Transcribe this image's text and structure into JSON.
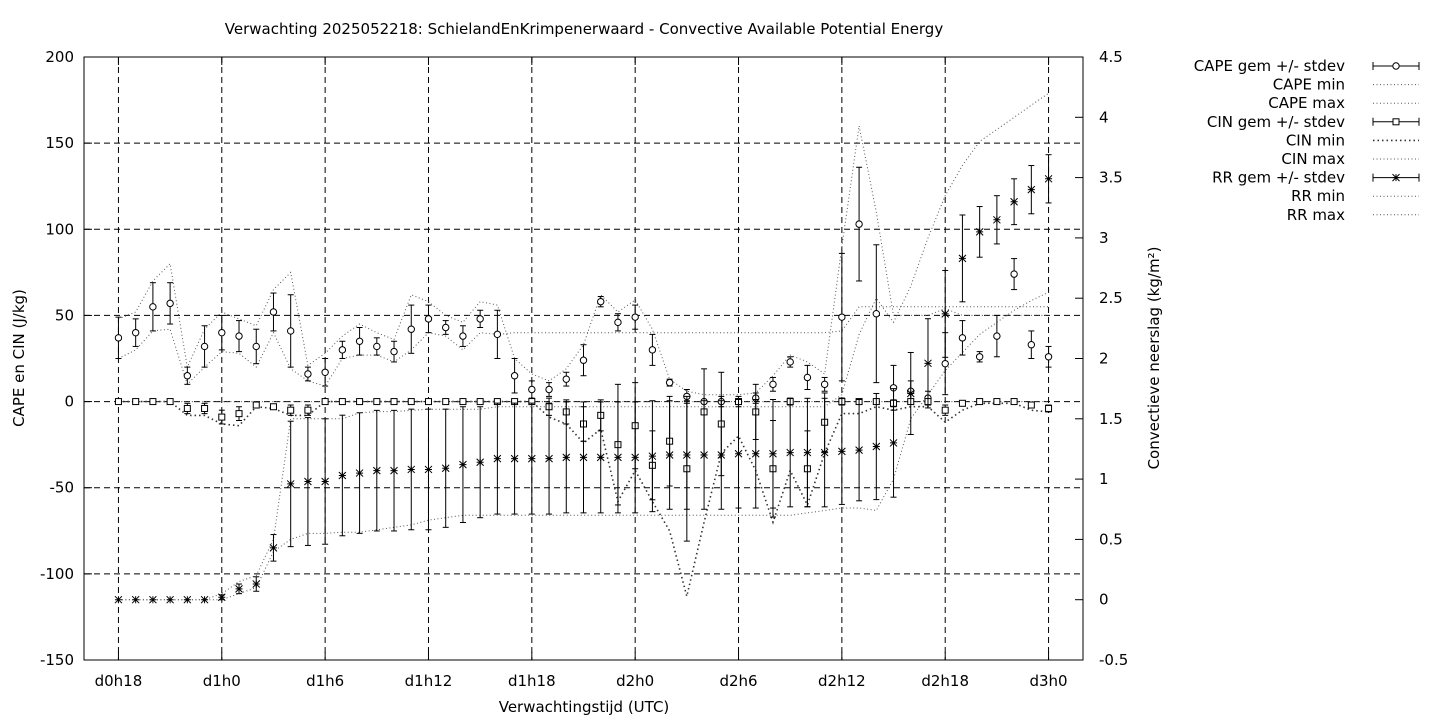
{
  "chart_data": {
    "type": "line",
    "title": "Verwachting 2025052218: SchielandEnKrimpenerwaard - Convective Available Potential Energy",
    "xlabel": "Verwachtingstijd (UTC)",
    "ylabel": "CAPE en CIN (J/kg)",
    "y2label": "Convectieve neerslag (kg/m²)",
    "xlim": [
      -2,
      56
    ],
    "ylim": [
      -150,
      200
    ],
    "y2lim": [
      -0.5,
      4.5
    ],
    "x_ticks": [
      {
        "x": 0,
        "label": "d0h18"
      },
      {
        "x": 6,
        "label": "d1h0"
      },
      {
        "x": 12,
        "label": "d1h6"
      },
      {
        "x": 18,
        "label": "d1h12"
      },
      {
        "x": 24,
        "label": "d1h18"
      },
      {
        "x": 30,
        "label": "d2h0"
      },
      {
        "x": 36,
        "label": "d2h6"
      },
      {
        "x": 42,
        "label": "d2h12"
      },
      {
        "x": 48,
        "label": "d2h18"
      },
      {
        "x": 54,
        "label": "d3h0"
      }
    ],
    "y_ticks": [
      "-150",
      "-100",
      "-50",
      "0",
      "50",
      "100",
      "150",
      "200"
    ],
    "y2_ticks": [
      "-0.5",
      "0",
      "0.5",
      "1",
      "1.5",
      "2",
      "2.5",
      "3",
      "3.5",
      "4",
      "4.5"
    ],
    "grid": true,
    "legend_position": "outside-right",
    "legend": [
      {
        "label": "CAPE gem +/- stdev",
        "style": "circle-errorbar"
      },
      {
        "label": "CAPE min",
        "style": "dotted"
      },
      {
        "label": "CAPE max",
        "style": "dotted"
      },
      {
        "label": "CIN gem +/- stdev",
        "style": "square-errorbar"
      },
      {
        "label": "CIN min",
        "style": "dotted-coarse"
      },
      {
        "label": "CIN max",
        "style": "dotted"
      },
      {
        "label": "RR gem +/- stdev",
        "style": "star-errorbar"
      },
      {
        "label": "RR min",
        "style": "dotted"
      },
      {
        "label": "RR max",
        "style": "dotted"
      }
    ],
    "x": [
      0,
      1,
      2,
      3,
      4,
      5,
      6,
      7,
      8,
      9,
      10,
      11,
      12,
      13,
      14,
      15,
      16,
      17,
      18,
      19,
      20,
      21,
      22,
      23,
      24,
      25,
      26,
      27,
      28,
      29,
      30,
      31,
      32,
      33,
      34,
      35,
      36,
      37,
      38,
      39,
      40,
      41,
      42,
      43,
      44,
      45,
      46,
      47,
      48,
      49,
      50,
      51,
      52,
      53,
      54
    ],
    "series": [
      {
        "name": "CAPE gem +/- stdev",
        "axis": "y1",
        "marker": "circle",
        "values": [
          37,
          40,
          55,
          57,
          15,
          32,
          40,
          38,
          32,
          52,
          41,
          16,
          17,
          30,
          35,
          32,
          29,
          42,
          48,
          43,
          38,
          48,
          39,
          15,
          7,
          7,
          13,
          24,
          58,
          46,
          49,
          30,
          11,
          3,
          0,
          0,
          0,
          2,
          10,
          23,
          14,
          10,
          49,
          103,
          51,
          8,
          6,
          2,
          22,
          37,
          26,
          38,
          74,
          33,
          26
        ],
        "err": [
          12,
          8,
          14,
          12,
          5,
          12,
          10,
          9,
          10,
          11,
          21,
          4,
          8,
          5,
          8,
          5,
          6,
          14,
          8,
          4,
          6,
          5,
          14,
          10,
          5,
          4,
          4,
          9,
          3,
          5,
          7,
          9,
          2,
          4,
          0,
          3,
          0,
          3,
          4,
          3,
          7,
          4,
          37,
          33,
          40,
          13,
          6,
          4,
          18,
          10,
          3,
          12,
          9,
          8,
          6
        ]
      },
      {
        "name": "CIN gem +/- stdev",
        "axis": "y1",
        "marker": "square",
        "values": [
          0,
          0,
          0,
          0,
          -4,
          -4,
          -9,
          -7,
          -2,
          -3,
          -5,
          -5,
          0,
          0,
          0,
          0,
          0,
          0,
          0,
          0,
          0,
          0,
          0,
          0,
          0,
          -3,
          -6,
          -13,
          -8,
          -25,
          -14,
          -37,
          -23,
          -39,
          -6,
          -13,
          0,
          -6,
          -39,
          0,
          -39,
          -12,
          0,
          0,
          0,
          -1,
          0,
          0,
          -5,
          -1,
          0,
          0,
          0,
          -2,
          -4
        ],
        "err": [
          0,
          0,
          0,
          0,
          3,
          3,
          4,
          4,
          1,
          1,
          3,
          3,
          0,
          0,
          0,
          0,
          0,
          0,
          0,
          0,
          0,
          0,
          0,
          0,
          0,
          5,
          7,
          10,
          9,
          35,
          25,
          20,
          26,
          42,
          25,
          30,
          3,
          16,
          28,
          2,
          22,
          17,
          2,
          0,
          0,
          2,
          0,
          0,
          3,
          0,
          0,
          0,
          0,
          1,
          2
        ]
      },
      {
        "name": "RR gem +/- stdev",
        "axis": "y2",
        "marker": "star",
        "values": [
          0,
          0,
          0,
          0,
          0,
          0,
          0.02,
          0.09,
          0.13,
          0.43,
          0.96,
          0.98,
          0.98,
          1.03,
          1.05,
          1.07,
          1.07,
          1.08,
          1.08,
          1.09,
          1.12,
          1.14,
          1.17,
          1.17,
          1.17,
          1.17,
          1.18,
          1.18,
          1.18,
          1.18,
          1.18,
          1.19,
          1.2,
          1.2,
          1.2,
          1.2,
          1.21,
          1.21,
          1.21,
          1.22,
          1.22,
          1.22,
          1.23,
          1.24,
          1.27,
          1.3,
          1.71,
          1.96,
          2.37,
          2.83,
          3.05,
          3.15,
          3.3,
          3.4,
          3.49
        ],
        "err": [
          0,
          0,
          0,
          0,
          0,
          0,
          0.02,
          0.04,
          0.06,
          0.11,
          0.52,
          0.53,
          0.52,
          0.5,
          0.5,
          0.5,
          0.5,
          0.5,
          0.5,
          0.49,
          0.48,
          0.46,
          0.46,
          0.46,
          0.46,
          0.46,
          0.46,
          0.46,
          0.46,
          0.46,
          0.46,
          0.46,
          0.45,
          0.45,
          0.45,
          0.45,
          0.45,
          0.45,
          0.45,
          0.45,
          0.45,
          0.45,
          0.44,
          0.42,
          0.44,
          0.45,
          0.34,
          0.37,
          0.36,
          0.36,
          0.21,
          0.2,
          0.19,
          0.2,
          0.2
        ]
      },
      {
        "name": "CAPE min",
        "axis": "y1",
        "style": "dotted",
        "values": [
          25,
          30,
          41,
          42,
          10,
          20,
          29,
          28,
          20,
          40,
          19,
          12,
          9,
          25,
          27,
          27,
          23,
          30,
          40,
          38,
          30,
          40,
          39,
          40,
          40,
          40,
          40,
          40,
          40,
          40,
          40,
          40,
          40,
          40,
          40,
          40,
          40,
          40,
          40,
          40,
          40,
          40,
          41,
          55,
          55,
          55,
          55,
          55,
          55,
          55,
          55,
          55,
          55,
          55,
          55
        ]
      },
      {
        "name": "CAPE max",
        "axis": "y1",
        "style": "dotted",
        "values": [
          48,
          52,
          70,
          80,
          20,
          42,
          52,
          48,
          44,
          65,
          75,
          21,
          28,
          38,
          45,
          40,
          36,
          62,
          58,
          50,
          46,
          58,
          56,
          25,
          16,
          12,
          19,
          33,
          62,
          52,
          59,
          42,
          13,
          6,
          4,
          4,
          4,
          5,
          15,
          27,
          23,
          16,
          90,
          160,
          110,
          50,
          50,
          50,
          54,
          50,
          50,
          50,
          50,
          50,
          50
        ]
      },
      {
        "name": "CIN min",
        "axis": "y1",
        "style": "dotted-coarse",
        "values": [
          0,
          0,
          0,
          0,
          -8,
          -8,
          -13,
          -14,
          -3,
          -4,
          -8,
          -8,
          0,
          0,
          0,
          0,
          0,
          0,
          0,
          0,
          0,
          0,
          0,
          0,
          0,
          -9,
          -13,
          -24,
          -16,
          -58,
          -40,
          -58,
          -75,
          -113,
          -70,
          -30,
          -20,
          -40,
          -70,
          -40,
          -60,
          -30,
          -7,
          -7,
          -3,
          -5,
          -3,
          -3,
          -12,
          -5,
          -1,
          -1,
          -1,
          -5,
          -6
        ]
      },
      {
        "name": "CIN max",
        "axis": "y1",
        "style": "dotted",
        "values": [
          0,
          0,
          0,
          0,
          0,
          0,
          0,
          0,
          0,
          0,
          0,
          0,
          0,
          0,
          0,
          0,
          0,
          0,
          0,
          0,
          0,
          0,
          0,
          0,
          0,
          0,
          0,
          0,
          0,
          0,
          0,
          0,
          0,
          0,
          0,
          0,
          0,
          0,
          0,
          0,
          0,
          0,
          0,
          0,
          0,
          0,
          0,
          0,
          0,
          0,
          0,
          0,
          0,
          0,
          0
        ]
      },
      {
        "name": "RR min",
        "axis": "y2",
        "style": "dotted",
        "values": [
          0,
          0,
          0,
          0,
          0,
          0,
          0,
          0.05,
          0.1,
          0.4,
          0.5,
          0.55,
          0.55,
          0.56,
          0.56,
          0.58,
          0.6,
          0.62,
          0.66,
          0.68,
          0.7,
          0.7,
          0.7,
          0.7,
          0.7,
          0.7,
          0.7,
          0.7,
          0.7,
          0.7,
          0.7,
          0.7,
          0.7,
          0.7,
          0.7,
          0.7,
          0.7,
          0.7,
          0.7,
          0.7,
          0.72,
          0.74,
          0.76,
          0.76,
          0.74,
          1.0,
          1.5,
          1.7,
          1.9,
          2.05,
          2.2,
          2.3,
          2.4,
          2.48,
          2.55
        ]
      },
      {
        "name": "RR max",
        "axis": "y2",
        "style": "dotted",
        "values": [
          0,
          0,
          0,
          0,
          0,
          0,
          0.05,
          0.15,
          0.2,
          0.5,
          1.5,
          1.5,
          1.5,
          1.5,
          1.55,
          1.56,
          1.56,
          1.57,
          1.58,
          1.58,
          1.58,
          1.58,
          1.6,
          1.6,
          1.6,
          1.6,
          1.6,
          1.6,
          1.6,
          1.6,
          1.6,
          1.6,
          1.6,
          1.6,
          1.6,
          1.6,
          1.6,
          1.6,
          1.6,
          1.6,
          1.6,
          1.6,
          1.7,
          2.2,
          2.5,
          2.3,
          2.6,
          3.0,
          3.35,
          3.6,
          3.8,
          3.9,
          4.0,
          4.1,
          4.2
        ]
      }
    ]
  }
}
